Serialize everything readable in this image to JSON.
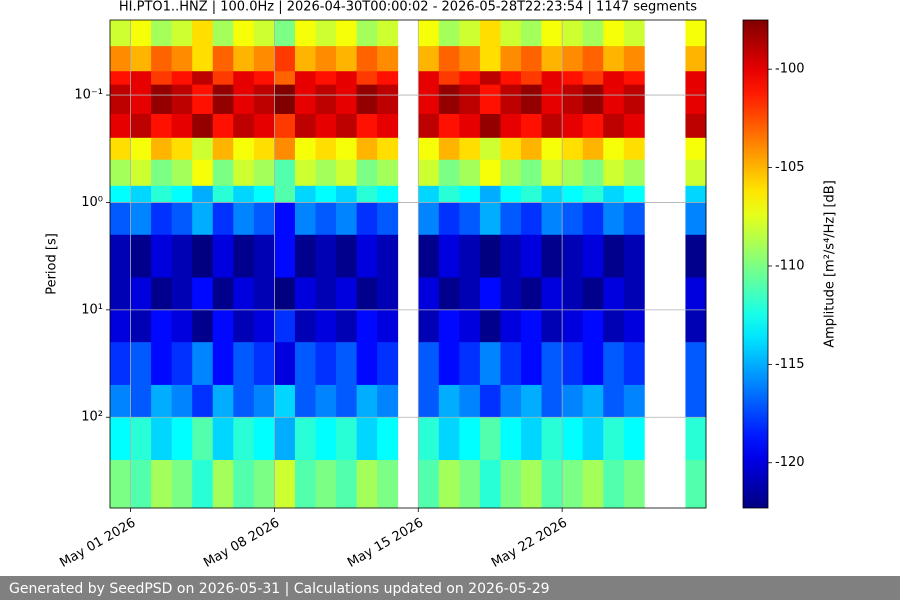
{
  "chart_data": {
    "type": "spectrogram",
    "title": "HI.PTO1..HNZ | 100.0Hz | 2026-04-30T00:00:02 - 2026-05-28T22:23:54 | 1147 segments",
    "y_label": "Period [s]",
    "colorbar_label": "Amplitude [m²/s⁴/Hz] [dB]",
    "footer": "Generated by SeedPSD on 2026-05-31 | Calculations updated on 2026-05-29",
    "colormap": "jet",
    "ylog": true,
    "yinvert": true,
    "grid": true,
    "xlim": [
      "2026-04-30",
      "2026-05-29"
    ],
    "xticks": [
      {
        "value": "2026-05-01",
        "label": "May 01 2026"
      },
      {
        "value": "2026-05-08",
        "label": "May 08 2026"
      },
      {
        "value": "2026-05-15",
        "label": "May 15 2026"
      },
      {
        "value": "2026-05-22",
        "label": "May 22 2026"
      }
    ],
    "ylim": [
      0.02,
      700
    ],
    "yticks": [
      {
        "value": 0.1,
        "label": "10⁻¹"
      },
      {
        "value": 1,
        "label": "10⁰"
      },
      {
        "value": 10,
        "label": "10¹"
      },
      {
        "value": 100,
        "label": "10²"
      }
    ],
    "clim": [
      -122.3,
      -97.5
    ],
    "cticks": [
      -100,
      -105,
      -110,
      -115,
      -120
    ],
    "time_bins": [
      "2026-04-30",
      "2026-05-01",
      "2026-05-02",
      "2026-05-03",
      "2026-05-04",
      "2026-05-05",
      "2026-05-06",
      "2026-05-07",
      "2026-05-08",
      "2026-05-09",
      "2026-05-10",
      "2026-05-11",
      "2026-05-12",
      "2026-05-13",
      "2026-05-14",
      "2026-05-15",
      "2026-05-16",
      "2026-05-17",
      "2026-05-18",
      "2026-05-19",
      "2026-05-20",
      "2026-05-21",
      "2026-05-22",
      "2026-05-23",
      "2026-05-24",
      "2026-05-25",
      "2026-05-26",
      "2026-05-27",
      "2026-05-28",
      "2026-05-29"
    ],
    "period_bins": [
      0.02,
      0.035,
      0.06,
      0.08,
      0.15,
      0.25,
      0.4,
      0.7,
      1,
      2,
      5,
      10,
      20,
      50,
      100,
      250,
      700
    ],
    "z": [
      [
        -108,
        -107,
        -109,
        -108,
        -106,
        -109,
        -107,
        -108,
        -110,
        -107,
        -108,
        -107,
        -109,
        -108,
        null,
        -107,
        -109,
        -108,
        -106,
        -108,
        -109,
        -107,
        -108,
        -109,
        -107,
        -108,
        null,
        null,
        -107
      ],
      [
        -104,
        -105,
        -103,
        -104,
        -106,
        -103,
        -105,
        -104,
        -102,
        -105,
        -104,
        -105,
        -103,
        -104,
        null,
        -105,
        -103,
        -104,
        -106,
        -104,
        -103,
        -105,
        -104,
        -103,
        -105,
        -104,
        null,
        null,
        -105
      ],
      [
        -101,
        -100,
        -102,
        -101,
        -99,
        -102,
        -100,
        -101,
        -103,
        -100,
        -101,
        -100,
        -102,
        -101,
        null,
        -100,
        -102,
        -101,
        -99,
        -101,
        -102,
        -100,
        -101,
        -102,
        -100,
        -101,
        null,
        null,
        -100
      ],
      [
        -99,
        -100,
        -98,
        -99,
        -101,
        -98,
        -100,
        -99,
        -97,
        -100,
        -99,
        -100,
        -98,
        -99,
        null,
        -100,
        -98,
        -99,
        -101,
        -99,
        -98,
        -100,
        -99,
        -98,
        -100,
        -99,
        null,
        null,
        -100
      ],
      [
        -100,
        -99,
        -101,
        -100,
        -98,
        -101,
        -99,
        -100,
        -102,
        -99,
        -100,
        -99,
        -101,
        -100,
        null,
        -99,
        -101,
        -100,
        -98,
        -100,
        -101,
        -99,
        -100,
        -101,
        -99,
        -100,
        null,
        null,
        -99
      ],
      [
        -106,
        -107,
        -105,
        -106,
        -108,
        -105,
        -107,
        -106,
        -104,
        -107,
        -106,
        -107,
        -105,
        -106,
        null,
        -107,
        -105,
        -106,
        -108,
        -106,
        -105,
        -107,
        -106,
        -105,
        -107,
        -106,
        null,
        null,
        -107
      ],
      [
        -109,
        -108,
        -110,
        -109,
        -107,
        -110,
        -108,
        -109,
        -111,
        -108,
        -109,
        -108,
        -110,
        -109,
        null,
        -108,
        -110,
        -109,
        -107,
        -109,
        -110,
        -108,
        -109,
        -110,
        -108,
        -109,
        null,
        null,
        -108
      ],
      [
        -113,
        -114,
        -112,
        -113,
        -115,
        -112,
        -114,
        -113,
        -111,
        -114,
        -113,
        -114,
        -112,
        -113,
        null,
        -114,
        -112,
        -113,
        -115,
        -113,
        -112,
        -114,
        -113,
        -112,
        -114,
        -113,
        null,
        null,
        -114
      ],
      [
        -117,
        -116,
        -118,
        -117,
        -115,
        -118,
        -116,
        -117,
        -119,
        -116,
        -117,
        -116,
        -118,
        -117,
        null,
        -116,
        -118,
        -117,
        -115,
        -117,
        -118,
        -116,
        -117,
        -118,
        -116,
        -117,
        null,
        null,
        -116
      ],
      [
        -121,
        -122,
        -120,
        -121,
        -123,
        -120,
        -122,
        -121,
        -119,
        -122,
        -121,
        -122,
        -120,
        -121,
        null,
        -122,
        -120,
        -121,
        -123,
        -121,
        -120,
        -122,
        -121,
        -120,
        -122,
        -121,
        null,
        null,
        -122
      ],
      [
        -121,
        -120,
        -122,
        -121,
        -119,
        -122,
        -120,
        -121,
        -123,
        -120,
        -121,
        -120,
        -122,
        -121,
        null,
        -120,
        -122,
        -121,
        -119,
        -121,
        -122,
        -120,
        -121,
        -122,
        -120,
        -121,
        null,
        null,
        -120
      ],
      [
        -120,
        -121,
        -119,
        -120,
        -122,
        -119,
        -121,
        -120,
        -118,
        -121,
        -120,
        -121,
        -119,
        -120,
        null,
        -121,
        -119,
        -120,
        -122,
        -120,
        -119,
        -121,
        -120,
        -119,
        -121,
        -120,
        null,
        null,
        -121
      ],
      [
        -118,
        -117,
        -119,
        -118,
        -116,
        -119,
        -117,
        -118,
        -120,
        -117,
        -118,
        -117,
        -119,
        -118,
        null,
        -117,
        -119,
        -118,
        -116,
        -118,
        -119,
        -117,
        -118,
        -119,
        -117,
        -118,
        null,
        null,
        -117
      ],
      [
        -116,
        -117,
        -115,
        -116,
        -118,
        -115,
        -117,
        -116,
        -114,
        -117,
        -116,
        -117,
        -115,
        -116,
        null,
        -117,
        -115,
        -116,
        -118,
        -116,
        -115,
        -117,
        -116,
        -115,
        -117,
        -116,
        null,
        null,
        -117
      ],
      [
        -113,
        -112,
        -114,
        -113,
        -111,
        -114,
        -112,
        -113,
        -115,
        -112,
        -113,
        -112,
        -114,
        -113,
        null,
        -112,
        -114,
        -113,
        -111,
        -113,
        -114,
        -112,
        -113,
        -114,
        -112,
        -113,
        null,
        null,
        -112
      ],
      [
        -110,
        -111,
        -109,
        -110,
        -112,
        -109,
        -111,
        -110,
        -108,
        -111,
        -110,
        -111,
        -109,
        -110,
        null,
        -111,
        -109,
        -110,
        -112,
        -110,
        -109,
        -111,
        -110,
        -109,
        -111,
        -110,
        null,
        null,
        -111
      ]
    ]
  }
}
